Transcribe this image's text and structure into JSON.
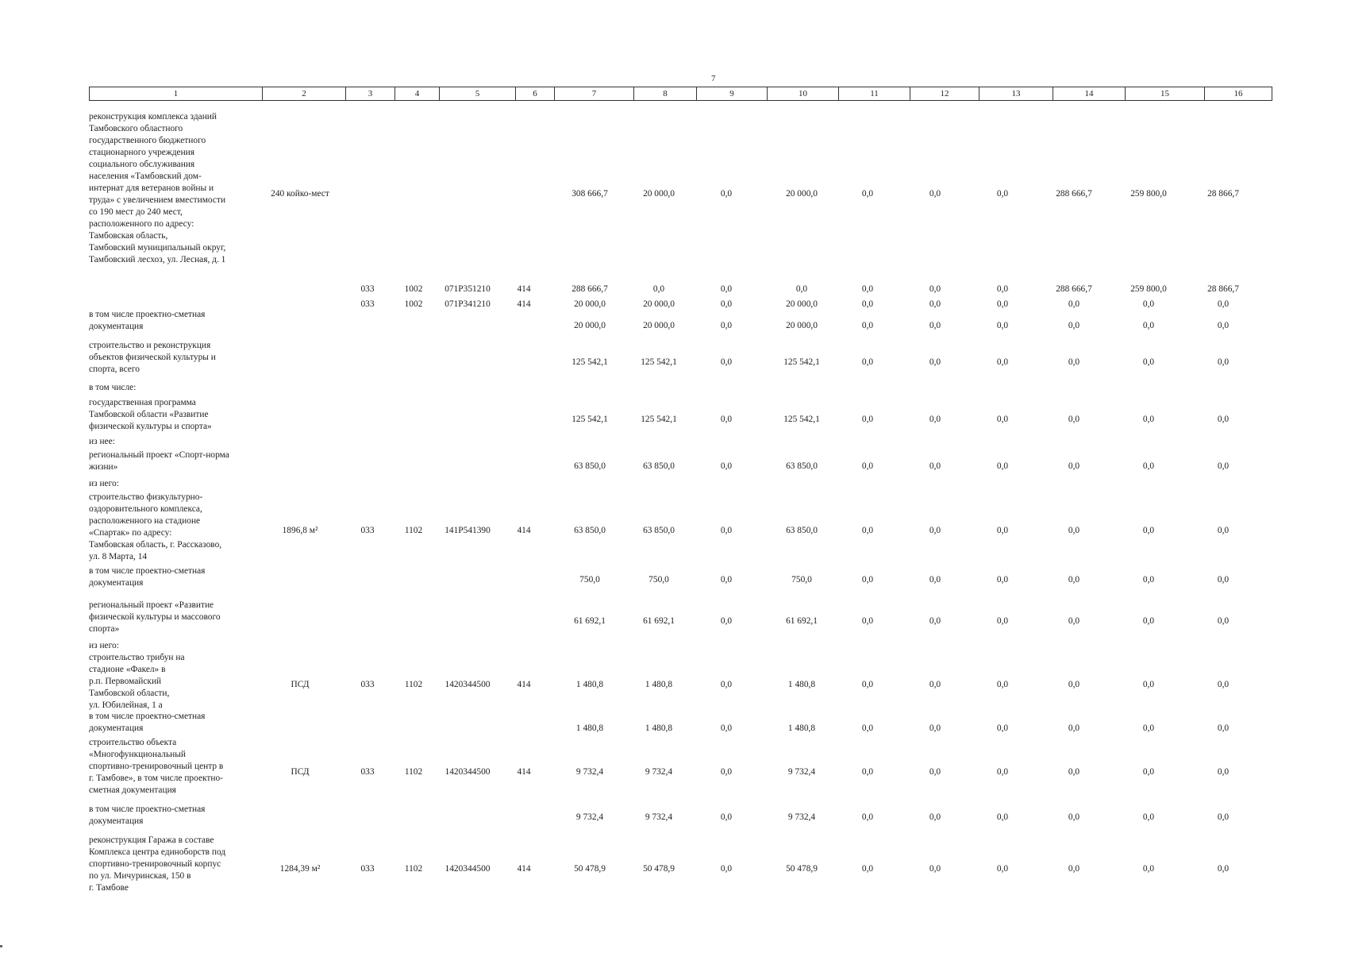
{
  "page_number": "7",
  "column_headers": [
    "1",
    "2",
    "3",
    "4",
    "5",
    "6",
    "7",
    "8",
    "9",
    "10",
    "11",
    "12",
    "13",
    "14",
    "15",
    "16"
  ],
  "rows": [
    {
      "lines": [
        "реконструкция комплекса зданий",
        "Тамбовского областного",
        "государственного бюджетного",
        "стационарного учреждения",
        "социального обслуживания",
        "населения «Тамбовский дом-",
        "интернат для ветеранов войны и",
        "труда» с увеличением вместимости",
        "со 190 мест до 240 мест,",
        "расположенного по адресу:",
        "Тамбовская область,",
        "Тамбовский муниципальный округ,",
        "Тамбовский лесхоз, ул. Лесная, д. 1"
      ],
      "c2": "240 койко-мест",
      "c3": "",
      "c4": "",
      "c5": "",
      "c6": "",
      "values": [
        "308 666,7",
        "20 000,0",
        "0,0",
        "20 000,0",
        "0,0",
        "0,0",
        "0,0",
        "288 666,7",
        "259 800,0",
        "28 866,7"
      ]
    },
    {
      "lines": [],
      "c2": "",
      "c3": "033",
      "c4": "1002",
      "c5": "071P351210",
      "c6": "414",
      "values": [
        "288 666,7",
        "0,0",
        "0,0",
        "0,0",
        "0,0",
        "0,0",
        "0,0",
        "288 666,7",
        "259 800,0",
        "28 866,7"
      ]
    },
    {
      "lines": [],
      "c2": "",
      "c3": "033",
      "c4": "1002",
      "c5": "071P341210",
      "c6": "414",
      "values": [
        "20 000,0",
        "20 000,0",
        "0,0",
        "20 000,0",
        "0,0",
        "0,0",
        "0,0",
        "0,0",
        "0,0",
        "0,0"
      ]
    },
    {
      "lines": [
        "в том числе проектно-сметная",
        "документация"
      ],
      "c2": "",
      "c3": "",
      "c4": "",
      "c5": "",
      "c6": "",
      "values": [
        "20 000,0",
        "20 000,0",
        "0,0",
        "20 000,0",
        "0,0",
        "0,0",
        "0,0",
        "0,0",
        "0,0",
        "0,0"
      ]
    },
    {
      "lines": [
        "строительство и реконструкция",
        "объектов физической культуры и",
        "спорта, всего"
      ],
      "c2": "",
      "c3": "",
      "c4": "",
      "c5": "",
      "c6": "",
      "values": [
        "125 542,1",
        "125 542,1",
        "0,0",
        "125 542,1",
        "0,0",
        "0,0",
        "0,0",
        "0,0",
        "0,0",
        "0,0"
      ]
    },
    {
      "lines": [
        "в том числе:"
      ],
      "c2": "",
      "c3": "",
      "c4": "",
      "c5": "",
      "c6": "",
      "values": []
    },
    {
      "lines": [
        "государственная программа",
        "Тамбовской области «Развитие",
        "физической культуры и спорта»"
      ],
      "c2": "",
      "c3": "",
      "c4": "",
      "c5": "",
      "c6": "",
      "values": [
        "125 542,1",
        "125 542,1",
        "0,0",
        "125 542,1",
        "0,0",
        "0,0",
        "0,0",
        "0,0",
        "0,0",
        "0,0"
      ]
    },
    {
      "lines": [
        "из нее:"
      ],
      "c2": "",
      "c3": "",
      "c4": "",
      "c5": "",
      "c6": "",
      "values": []
    },
    {
      "lines": [
        "региональный проект «Спорт-норма",
        "жизни»"
      ],
      "c2": "",
      "c3": "",
      "c4": "",
      "c5": "",
      "c6": "",
      "values": [
        "63 850,0",
        "63 850,0",
        "0,0",
        "63 850,0",
        "0,0",
        "0,0",
        "0,0",
        "0,0",
        "0,0",
        "0,0"
      ]
    },
    {
      "lines": [
        "из него:"
      ],
      "c2": "",
      "c3": "",
      "c4": "",
      "c5": "",
      "c6": "",
      "values": []
    },
    {
      "lines": [
        "строительство физкультурно-",
        "оздоровительного комплекса,",
        "расположенного на стадионе",
        "«Спартак» по адресу:",
        "Тамбовская область, г. Рассказово,",
        "ул. 8 Марта, 14"
      ],
      "c2": "1896,8 м²",
      "c3": "033",
      "c4": "1102",
      "c5": "141P541390",
      "c6": "414",
      "values": [
        "63 850,0",
        "63 850,0",
        "0,0",
        "63 850,0",
        "0,0",
        "0,0",
        "0,0",
        "0,0",
        "0,0",
        "0,0"
      ]
    },
    {
      "lines": [
        "в том числе проектно-сметная",
        "документация"
      ],
      "c2": "",
      "c3": "",
      "c4": "",
      "c5": "",
      "c6": "",
      "values": [
        "750,0",
        "750,0",
        "0,0",
        "750,0",
        "0,0",
        "0,0",
        "0,0",
        "0,0",
        "0,0",
        "0,0"
      ]
    },
    {
      "lines": [
        "региональный проект «Развитие",
        "физической культуры и массового",
        "спорта»"
      ],
      "c2": "",
      "c3": "",
      "c4": "",
      "c5": "",
      "c6": "",
      "values": [
        "61 692,1",
        "61 692,1",
        "0,0",
        "61 692,1",
        "0,0",
        "0,0",
        "0,0",
        "0,0",
        "0,0",
        "0,0"
      ]
    },
    {
      "lines": [
        "из него:"
      ],
      "c2": "",
      "c3": "",
      "c4": "",
      "c5": "",
      "c6": "",
      "values": []
    },
    {
      "lines": [
        "строительство трибун на",
        "стадионе «Факел» в",
        "р.п. Первомайский",
        "Тамбовской области,",
        "ул. Юбилейная, 1 а"
      ],
      "c2": "ПСД",
      "c3": "033",
      "c4": "1102",
      "c5": "1420344500",
      "c6": "414",
      "values": [
        "1 480,8",
        "1 480,8",
        "0,0",
        "1 480,8",
        "0,0",
        "0,0",
        "0,0",
        "0,0",
        "0,0",
        "0,0"
      ]
    },
    {
      "lines": [
        "в том числе проектно-сметная",
        "документация"
      ],
      "c2": "",
      "c3": "",
      "c4": "",
      "c5": "",
      "c6": "",
      "values": [
        "1 480,8",
        "1 480,8",
        "0,0",
        "1 480,8",
        "0,0",
        "0,0",
        "0,0",
        "0,0",
        "0,0",
        "0,0"
      ]
    },
    {
      "lines": [
        "строительство объекта",
        "«Многофункциональный",
        "спортивно-тренировочный центр в",
        "г. Тамбове», в том числе проектно-",
        "сметная документация"
      ],
      "c2": "ПСД",
      "c3": "033",
      "c4": "1102",
      "c5": "1420344500",
      "c6": "414",
      "values": [
        "9 732,4",
        "9 732,4",
        "0,0",
        "9 732,4",
        "0,0",
        "0,0",
        "0,0",
        "0,0",
        "0,0",
        "0,0"
      ]
    },
    {
      "lines": [
        "в том числе проектно-сметная",
        "документация"
      ],
      "c2": "",
      "c3": "",
      "c4": "",
      "c5": "",
      "c6": "",
      "values": [
        "9 732,4",
        "9 732,4",
        "0,0",
        "9 732,4",
        "0,0",
        "0,0",
        "0,0",
        "0,0",
        "0,0",
        "0,0"
      ]
    },
    {
      "lines": [
        "реконструкция Гаража в составе",
        "Комплекса центра единоборств под",
        "спортивно-тренировочный корпус",
        "по ул. Мичуринская, 150 в",
        "г. Тамбове"
      ],
      "c2": "1284,39 м²",
      "c3": "033",
      "c4": "1102",
      "c5": "1420344500",
      "c6": "414",
      "values": [
        "50 478,9",
        "50 478,9",
        "0,0",
        "50 478,9",
        "0,0",
        "0,0",
        "0,0",
        "0,0",
        "0,0",
        "0,0"
      ]
    }
  ]
}
